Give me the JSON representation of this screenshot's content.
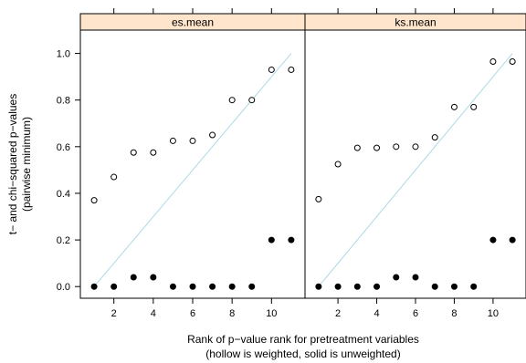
{
  "chart_data": {
    "type": "scatter",
    "xlabel_line1": "Rank of p−value rank for pretreatment variables",
    "xlabel_line2": "(hollow is weighted, solid is unweighted)",
    "ylabel_line1": "t− and chi−squared p−values",
    "ylabel_line2": "(pairwise minimum)",
    "xlim": [
      0.3,
      11.7
    ],
    "ylim": [
      -0.05,
      1.1
    ],
    "x_ticks": [
      2,
      4,
      6,
      8,
      10
    ],
    "x_tick_labels": [
      "2",
      "4",
      "6",
      "8",
      "10"
    ],
    "y_ticks": [
      0.0,
      0.2,
      0.4,
      0.6,
      0.8,
      1.0
    ],
    "y_tick_labels": [
      "0.0",
      "0.2",
      "0.4",
      "0.6",
      "0.8",
      "1.0"
    ],
    "reference_line": "diagonal from (1, 0) to (11, 1)",
    "reference_line_color": "#add8e6",
    "strip_color": "#ffe5cc",
    "panels": [
      {
        "title": "es.mean",
        "x": [
          1,
          2,
          3,
          4,
          5,
          6,
          7,
          8,
          9,
          10,
          11
        ],
        "weighted": [
          0.37,
          0.47,
          0.575,
          0.575,
          0.625,
          0.625,
          0.65,
          0.8,
          0.8,
          0.93,
          0.93
        ],
        "unweighted": [
          0.0,
          0.0,
          0.04,
          0.04,
          0.0,
          0.0,
          0.0,
          0.0,
          0.0,
          0.2,
          0.2
        ]
      },
      {
        "title": "ks.mean",
        "x": [
          1,
          2,
          3,
          4,
          5,
          6,
          7,
          8,
          9,
          10,
          11
        ],
        "weighted": [
          0.375,
          0.525,
          0.595,
          0.595,
          0.6,
          0.6,
          0.64,
          0.77,
          0.77,
          0.965,
          0.965
        ],
        "unweighted": [
          0.0,
          0.0,
          0.0,
          0.0,
          0.04,
          0.04,
          0.0,
          0.0,
          0.0,
          0.2,
          0.2
        ]
      }
    ]
  }
}
